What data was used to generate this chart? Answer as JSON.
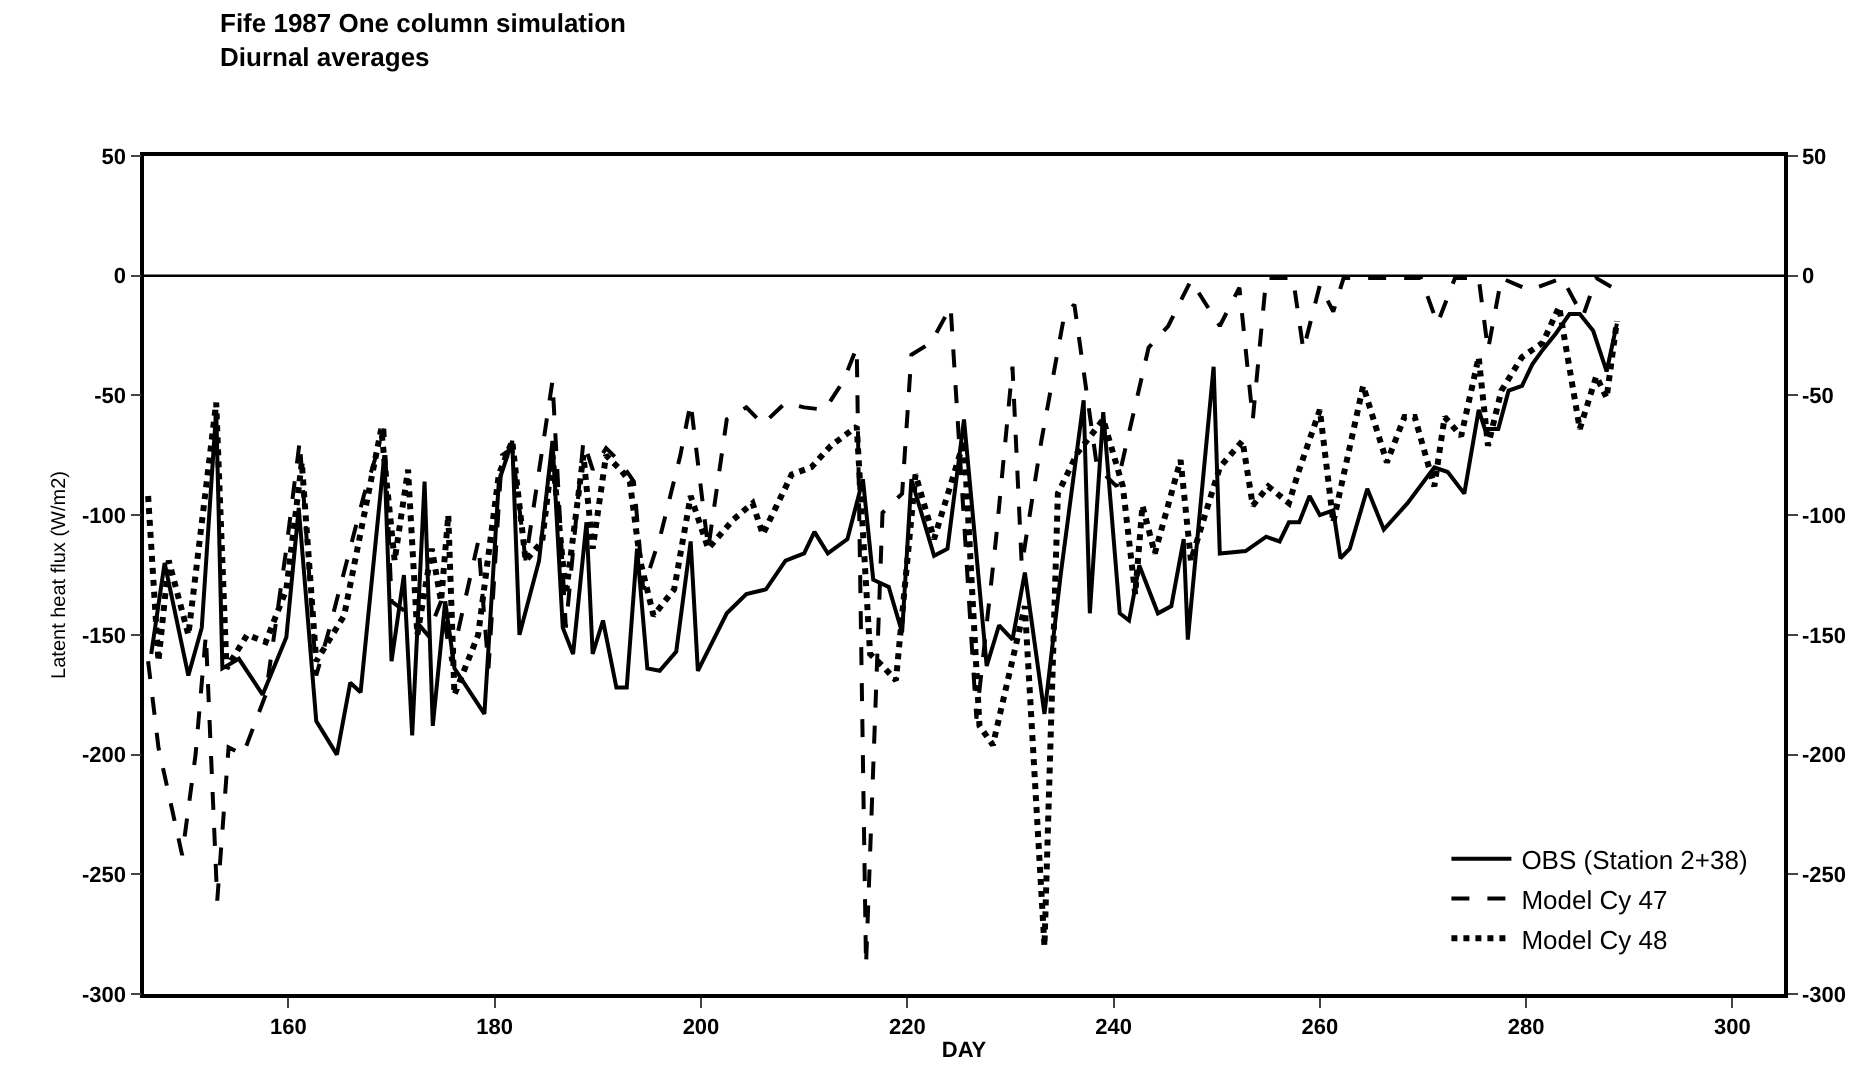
{
  "chart_data": {
    "type": "line",
    "title": "Fife 1987 One column simulation",
    "subtitle": "Diurnal averages",
    "xlabel": "DAY",
    "ylabel": "Latent heat flux (W/m2)",
    "xlim": [
      146,
      305
    ],
    "xticks": [
      160,
      180,
      200,
      220,
      240,
      260,
      280,
      300
    ],
    "ylim": [
      -300,
      50
    ],
    "yticks": [
      -300,
      -250,
      -200,
      -150,
      -100,
      -50,
      0,
      50
    ],
    "y2lim": [
      -300,
      50
    ],
    "y2ticks": [
      -300,
      -250,
      -200,
      -150,
      -100,
      -50,
      0,
      50
    ],
    "grid": false,
    "legend": "bottom right",
    "ref_lines": [
      {
        "axis": "y",
        "value": 0
      }
    ],
    "series": [
      {
        "name": "OBS (Station 2+38)",
        "color": "#000000",
        "line_style": "solid",
        "x": [
          146.7,
          148,
          150.3,
          151.6,
          153,
          153.6,
          155.2,
          157.5,
          159.8,
          161,
          162.7,
          164.7,
          166,
          167,
          169.3,
          170,
          171.2,
          172,
          173.2,
          174,
          175.2,
          176.1,
          179,
          180.4,
          181.7,
          182.4,
          184.3,
          185.6,
          186.6,
          187.6,
          188.9,
          189.5,
          190.5,
          191.8,
          192.8,
          193.8,
          194.8,
          196,
          197.6,
          199,
          199.7,
          202.5,
          204.4,
          206.3,
          208.2,
          210,
          211,
          212.3,
          214.2,
          215.7,
          216.7,
          218.2,
          219.5,
          220.4,
          222.6,
          223.9,
          225.5,
          227.7,
          228.9,
          230.2,
          231.4,
          233.3,
          234.9,
          237.1,
          237.7,
          239,
          240.6,
          241.5,
          242.5,
          244.3,
          245.6,
          246.8,
          247.2,
          249.7,
          250.3,
          252.8,
          254.8,
          256.1,
          257,
          258,
          259,
          260,
          261.3,
          262,
          262.9,
          264.6,
          266.2,
          268.5,
          271.1,
          272.4,
          274,
          275.4,
          276,
          277.3,
          278.3,
          279.6,
          280.6,
          281.6,
          282.9,
          284.2,
          285.2,
          286.5,
          287.8,
          288.8
        ],
        "values": [
          -158,
          -120,
          -167,
          -147,
          -56,
          -164,
          -160,
          -175,
          -151,
          -97,
          -186,
          -200,
          -170,
          -174,
          -75,
          -161,
          -125,
          -192,
          -86,
          -188,
          -136,
          -164,
          -183,
          -86,
          -69,
          -150,
          -119,
          -69,
          -147,
          -158,
          -103,
          -158,
          -144,
          -172,
          -172,
          -114,
          -164,
          -165,
          -157,
          -111,
          -165,
          -141,
          -133,
          -131,
          -119,
          -116,
          -107,
          -116,
          -110,
          -85,
          -127,
          -130,
          -149,
          -85,
          -117,
          -114,
          -60,
          -163,
          -146,
          -152,
          -124,
          -183,
          -124,
          -52,
          -141,
          -57,
          -141,
          -144,
          -121,
          -141,
          -138,
          -110,
          -152,
          -38,
          -116,
          -115,
          -109,
          -111,
          -103,
          -103,
          -92,
          -100,
          -98,
          -118,
          -114,
          -89,
          -106,
          -95,
          -80,
          -82,
          -91,
          -56,
          -64,
          -64,
          -48,
          -46,
          -37,
          -31,
          -24,
          -16,
          -16,
          -23,
          -40,
          -20
        ]
      },
      {
        "name": "Model Cy 47",
        "color": "#000000",
        "line_style": "dashed",
        "x": [
          146.4,
          147.4,
          149.7,
          151,
          152,
          153.1,
          154.2,
          155.6,
          157.8,
          159.8,
          161.1,
          162.7,
          164,
          167.3,
          169.3,
          170,
          171.9,
          173.5,
          174.8,
          175.8,
          178.4,
          179.4,
          180.7,
          181.7,
          183,
          185.6,
          186.9,
          188.6,
          189.5,
          190.8,
          192.2,
          193.5,
          194.4,
          196.1,
          198,
          199,
          200.7,
          202.5,
          204.4,
          206,
          208.2,
          210,
          212,
          213.8,
          215.1,
          216,
          217.6,
          219.5,
          220.4,
          222.3,
          224.2,
          226.7,
          228.6,
          230.2,
          231.1,
          233,
          235.2,
          236.2,
          238.4,
          240.3,
          243.4,
          245.3,
          247.5,
          250.3,
          252.2,
          253.5,
          254.8,
          257.4,
          258.4,
          260,
          261.3,
          262.3,
          267.2,
          269.8,
          271.4,
          273.1,
          275.4,
          276.3,
          277.6,
          280.3,
          283.5,
          285.5,
          286.8,
          288.4
        ],
        "values": [
          -161,
          -197,
          -242,
          -200,
          -150,
          -261,
          -197,
          -200,
          -175,
          -114,
          -69,
          -167,
          -147,
          -92,
          -64,
          -136,
          -142,
          -150,
          -136,
          -161,
          -111,
          -164,
          -75,
          -72,
          -119,
          -44,
          -147,
          -69,
          -81,
          -72,
          -78,
          -86,
          -131,
          -108,
          -75,
          -53,
          -114,
          -60,
          -55,
          -62,
          -53,
          -55,
          -56,
          -44,
          -30,
          -288,
          -99,
          -91,
          -33,
          -28,
          -13,
          -185,
          -110,
          -38,
          -121,
          -69,
          -17,
          -12,
          -80,
          -88,
          -30,
          -21,
          -2,
          -21,
          -5,
          -60,
          -1,
          -1,
          -31,
          -4,
          -15,
          -1,
          -1,
          -1,
          -20,
          -1,
          -1,
          -31,
          -1,
          -6,
          -1,
          -17,
          -1,
          -5
        ]
      },
      {
        "name": "Model Cy 48",
        "color": "#000000",
        "line_style": "dotted",
        "x": [
          146.4,
          147.4,
          148.4,
          150.3,
          153,
          154,
          156,
          157.8,
          159.8,
          161.3,
          162.7,
          165.4,
          169,
          170.3,
          171.6,
          172.5,
          173.9,
          174.8,
          175.5,
          176.1,
          178.4,
          180.4,
          181.7,
          183,
          184.6,
          185.6,
          186.9,
          188.6,
          189.5,
          190.8,
          192.2,
          193.1,
          194.1,
          195.4,
          197.4,
          199,
          200.7,
          203.1,
          205,
          206,
          208.8,
          210.7,
          212.6,
          215.1,
          216.4,
          217.6,
          218.9,
          220.8,
          222.6,
          225.5,
          227,
          228.3,
          231.4,
          233.3,
          234.6,
          236.5,
          239,
          240.9,
          242.1,
          242.8,
          244,
          246.5,
          247.5,
          250.3,
          252.5,
          253.5,
          255,
          257,
          258,
          260,
          261.3,
          264.2,
          266.5,
          268.2,
          269.2,
          271.1,
          272.1,
          273.7,
          275.4,
          276.3,
          277.6,
          279.6,
          281.6,
          283.2,
          285.2,
          286.8,
          287.8,
          288.8
        ],
        "values": [
          -92,
          -161,
          -119,
          -150,
          -53,
          -164,
          -150,
          -153,
          -131,
          -78,
          -161,
          -142,
          -64,
          -119,
          -81,
          -150,
          -114,
          -136,
          -100,
          -175,
          -150,
          -83,
          -69,
          -119,
          -111,
          -75,
          -133,
          -75,
          -114,
          -75,
          -81,
          -86,
          -119,
          -142,
          -131,
          -92,
          -114,
          -102,
          -95,
          -108,
          -83,
          -80,
          -71,
          -63,
          -158,
          -163,
          -169,
          -83,
          -110,
          -69,
          -188,
          -196,
          -138,
          -280,
          -91,
          -74,
          -60,
          -88,
          -133,
          -96,
          -116,
          -77,
          -119,
          -80,
          -69,
          -96,
          -88,
          -95,
          -81,
          -56,
          -103,
          -46,
          -78,
          -59,
          -59,
          -88,
          -59,
          -67,
          -34,
          -71,
          -48,
          -34,
          -28,
          -13,
          -64,
          -42,
          -51,
          -19
        ]
      }
    ]
  }
}
